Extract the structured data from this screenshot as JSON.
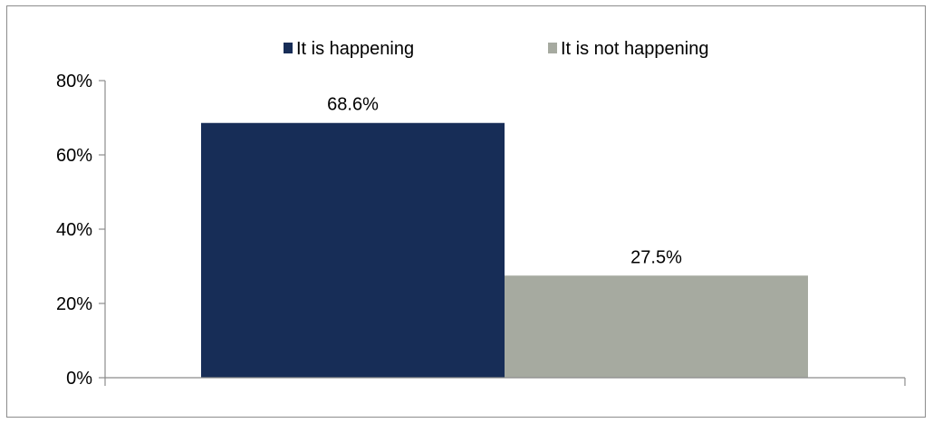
{
  "chart_data": {
    "type": "bar",
    "title": "",
    "xlabel": "",
    "ylabel": "",
    "series": [
      {
        "name": "It is happening",
        "value": 68.6,
        "label": "68.6%",
        "color": "#172d57"
      },
      {
        "name": "It is not happening",
        "value": 27.5,
        "label": "27.5%",
        "color": "#a6aaa0"
      }
    ],
    "ylim": [
      0,
      80
    ],
    "yticks": [
      0,
      20,
      40,
      60,
      80
    ],
    "ytick_labels": [
      "0%",
      "20%",
      "40%",
      "60%",
      "80%"
    ],
    "grid": false,
    "legend_position": "top"
  }
}
